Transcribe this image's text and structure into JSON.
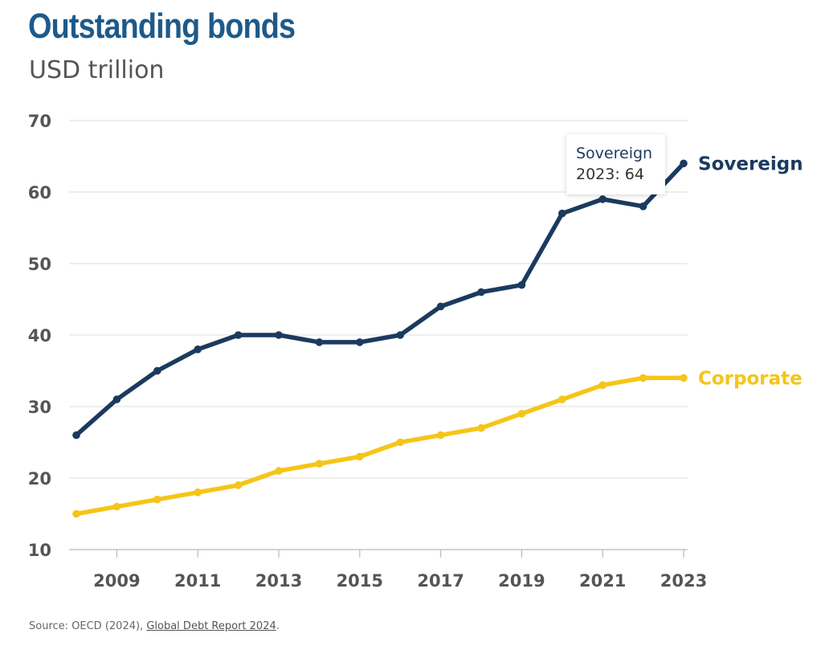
{
  "colors": {
    "title": "#1d5a8a",
    "sovereign": "#1b3a5e",
    "corporate": "#f5c518",
    "grid": "#e4e4e4",
    "text": "#555555"
  },
  "tooltip": {
    "series": "Sovereign",
    "value_text": "2023: 64"
  },
  "source": {
    "prefix": "Source: OECD (2024), ",
    "link_text": "Global Debt Report 2024",
    "suffix": "."
  },
  "chart_data": {
    "type": "line",
    "title": "Outstanding bonds",
    "subtitle": "USD trillion",
    "xlabel": "",
    "ylabel": "USD trillion",
    "x": [
      2008,
      2009,
      2010,
      2011,
      2012,
      2013,
      2014,
      2015,
      2016,
      2017,
      2018,
      2019,
      2020,
      2021,
      2022,
      2023
    ],
    "xticks": [
      "2009",
      "2011",
      "2013",
      "2015",
      "2017",
      "2019",
      "2021",
      "2023"
    ],
    "xlim": [
      2008,
      2023
    ],
    "yticks": [
      "70",
      "60",
      "50",
      "40",
      "30",
      "20",
      "10"
    ],
    "ylim": [
      10,
      70
    ],
    "grid": true,
    "legend": "inline-right",
    "series": [
      {
        "name": "Sovereign",
        "values": [
          26,
          31,
          35,
          38,
          40,
          40,
          39,
          39,
          40,
          44,
          46,
          47,
          57,
          59,
          58,
          64
        ]
      },
      {
        "name": "Corporate",
        "values": [
          15,
          16,
          17,
          18,
          19,
          21,
          22,
          23,
          25,
          26,
          27,
          29,
          31,
          33,
          34,
          34
        ]
      }
    ]
  }
}
